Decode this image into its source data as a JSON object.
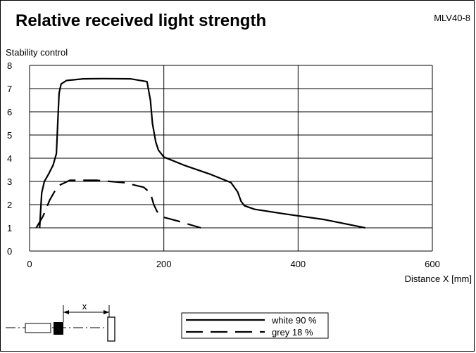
{
  "title": "Relative received light strength",
  "model": "MLV40-8",
  "chart_data": {
    "type": "line",
    "ylabel": "Stability control",
    "xlabel": "Distance X [mm]",
    "xlim": [
      0,
      600
    ],
    "ylim": [
      0,
      8
    ],
    "x_ticks": [
      "0",
      "200",
      "400",
      "600"
    ],
    "y_ticks": [
      "0",
      "1",
      "2",
      "3",
      "4",
      "5",
      "6",
      "7",
      "8"
    ],
    "grid": true,
    "series": [
      {
        "name": "white 90 %",
        "style": "solid",
        "x": [
          15,
          18,
          22,
          28,
          35,
          40,
          42,
          44,
          47,
          55,
          80,
          110,
          150,
          175,
          180,
          183,
          188,
          192,
          200,
          230,
          270,
          300,
          310,
          315,
          320,
          335,
          380,
          440,
          500
        ],
        "y": [
          1.0,
          2.5,
          3.0,
          3.3,
          3.7,
          4.2,
          5.5,
          6.8,
          7.2,
          7.35,
          7.42,
          7.43,
          7.42,
          7.3,
          6.5,
          5.5,
          4.7,
          4.35,
          4.05,
          3.7,
          3.3,
          2.95,
          2.55,
          2.15,
          1.95,
          1.8,
          1.6,
          1.35,
          1.0
        ]
      },
      {
        "name": "grey 18 %",
        "style": "dashed",
        "x": [
          10,
          20,
          30,
          42,
          60,
          100,
          140,
          170,
          180,
          185,
          190,
          200,
          220,
          255
        ],
        "y": [
          1.0,
          1.5,
          2.2,
          2.8,
          3.05,
          3.05,
          2.95,
          2.75,
          2.5,
          2.0,
          1.7,
          1.45,
          1.3,
          1.0
        ]
      }
    ],
    "legend_position": "bottom-center"
  },
  "diagram": {
    "distance_label": "x"
  }
}
